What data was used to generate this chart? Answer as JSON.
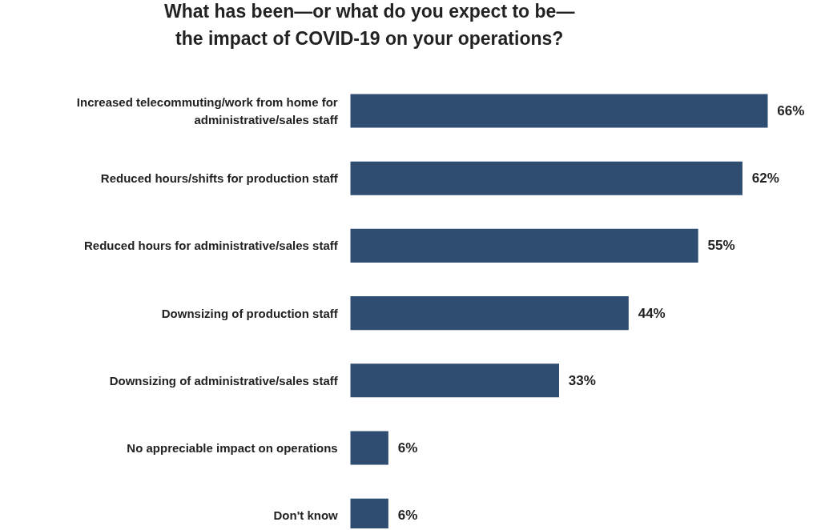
{
  "chart_data": {
    "type": "bar",
    "orientation": "horizontal",
    "title": "What has been—or what do you expect to be—the impact of COVID-19 on your operations?",
    "categories": [
      "Increased telecommuting/work from home for administrative/sales staff",
      "Reduced hours/shifts for production staff",
      "Reduced hours for administrative/sales staff",
      "Downsizing of production staff",
      "Downsizing of administrative/sales staff",
      "No appreciable impact on operations",
      "Don't know"
    ],
    "values": [
      66,
      62,
      55,
      44,
      33,
      6,
      6
    ],
    "value_labels": [
      "66%",
      "62%",
      "55%",
      "44%",
      "33%",
      "6%",
      "6%"
    ],
    "color": "#2f4d70"
  }
}
